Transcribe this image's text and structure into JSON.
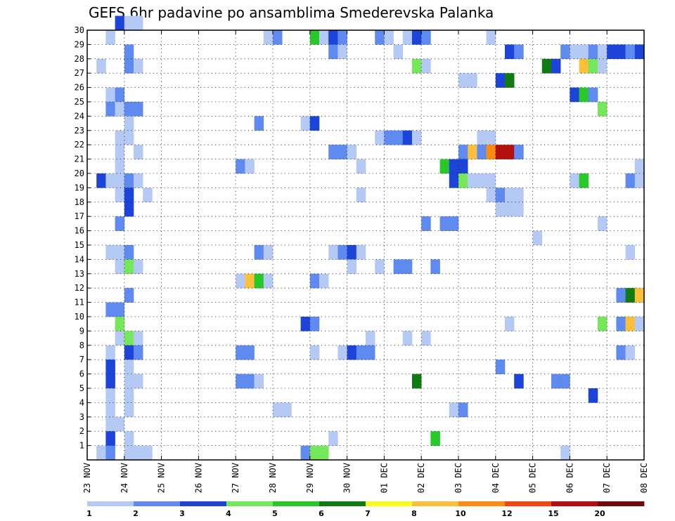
{
  "chart_data": {
    "type": "heatmap",
    "title": "GEFS 6hr padavine po ansamblima Smederevska Palanka",
    "x_tick_labels": [
      "23 NOV",
      "24 NOV",
      "25 NOV",
      "26 NOV",
      "27 NOV",
      "28 NOV",
      "29 NOV",
      "30 NOV",
      "01 DEC",
      "02 DEC",
      "03 DEC",
      "04 DEC",
      "05 DEC",
      "06 DEC",
      "07 DEC",
      "08 DEC"
    ],
    "y_tick_labels": [
      "1",
      "2",
      "3",
      "4",
      "5",
      "6",
      "7",
      "8",
      "9",
      "10",
      "11",
      "12",
      "13",
      "14",
      "15",
      "16",
      "17",
      "18",
      "19",
      "20",
      "21",
      "22",
      "23",
      "24",
      "25",
      "26",
      "27",
      "28",
      "29",
      "30"
    ],
    "xlim": [
      0,
      60
    ],
    "ylim": [
      0,
      30
    ],
    "grid": true,
    "colorbar": {
      "labels": [
        "1",
        "2",
        "3",
        "4",
        "5",
        "6",
        "7",
        "8",
        "10",
        "12",
        "15",
        "20"
      ],
      "colors": [
        "#b5c9f5",
        "#5f8af0",
        "#1d44d8",
        "#76e65a",
        "#28c828",
        "#127a12",
        "#fafa1e",
        "#fac03c",
        "#fa8c14",
        "#f04614",
        "#b40f0f",
        "#700a0a"
      ]
    },
    "cells": [
      {
        "x": 3,
        "y": 30,
        "c": 2
      },
      {
        "x": 4,
        "y": 30,
        "c": 0
      },
      {
        "x": 5,
        "y": 30,
        "c": 0
      },
      {
        "x": 2,
        "y": 29,
        "c": 0
      },
      {
        "x": 19,
        "y": 29,
        "c": 0
      },
      {
        "x": 20,
        "y": 29,
        "c": 1
      },
      {
        "x": 24,
        "y": 29,
        "c": 4
      },
      {
        "x": 25,
        "y": 29,
        "c": 0
      },
      {
        "x": 26,
        "y": 29,
        "c": 2
      },
      {
        "x": 27,
        "y": 29,
        "c": 1
      },
      {
        "x": 31,
        "y": 29,
        "c": 1
      },
      {
        "x": 32,
        "y": 29,
        "c": 0
      },
      {
        "x": 34,
        "y": 29,
        "c": 0
      },
      {
        "x": 35,
        "y": 29,
        "c": 2
      },
      {
        "x": 36,
        "y": 29,
        "c": 1
      },
      {
        "x": 43,
        "y": 29,
        "c": 0
      },
      {
        "x": 4,
        "y": 28,
        "c": 1
      },
      {
        "x": 26,
        "y": 28,
        "c": 1
      },
      {
        "x": 27,
        "y": 28,
        "c": 0
      },
      {
        "x": 33,
        "y": 28,
        "c": 0
      },
      {
        "x": 45,
        "y": 28,
        "c": 2
      },
      {
        "x": 46,
        "y": 28,
        "c": 1
      },
      {
        "x": 51,
        "y": 28,
        "c": 1
      },
      {
        "x": 52,
        "y": 28,
        "c": 0
      },
      {
        "x": 53,
        "y": 28,
        "c": 0
      },
      {
        "x": 54,
        "y": 28,
        "c": 1
      },
      {
        "x": 55,
        "y": 28,
        "c": 0
      },
      {
        "x": 56,
        "y": 28,
        "c": 2
      },
      {
        "x": 57,
        "y": 28,
        "c": 2
      },
      {
        "x": 58,
        "y": 28,
        "c": 1
      },
      {
        "x": 59,
        "y": 28,
        "c": 2
      },
      {
        "x": 1,
        "y": 27,
        "c": 0
      },
      {
        "x": 4,
        "y": 27,
        "c": 1
      },
      {
        "x": 5,
        "y": 27,
        "c": 0
      },
      {
        "x": 35,
        "y": 27,
        "c": 3
      },
      {
        "x": 36,
        "y": 27,
        "c": 0
      },
      {
        "x": 49,
        "y": 27,
        "c": 5
      },
      {
        "x": 50,
        "y": 27,
        "c": 2
      },
      {
        "x": 53,
        "y": 27,
        "c": 7
      },
      {
        "x": 54,
        "y": 27,
        "c": 3
      },
      {
        "x": 55,
        "y": 27,
        "c": 0
      },
      {
        "x": 40,
        "y": 26,
        "c": 0
      },
      {
        "x": 41,
        "y": 26,
        "c": 0
      },
      {
        "x": 44,
        "y": 26,
        "c": 2
      },
      {
        "x": 45,
        "y": 26,
        "c": 5
      },
      {
        "x": 2,
        "y": 25,
        "c": 0
      },
      {
        "x": 3,
        "y": 25,
        "c": 1
      },
      {
        "x": 52,
        "y": 25,
        "c": 2
      },
      {
        "x": 53,
        "y": 25,
        "c": 4
      },
      {
        "x": 54,
        "y": 25,
        "c": 1
      },
      {
        "x": 2,
        "y": 24,
        "c": 1
      },
      {
        "x": 3,
        "y": 24,
        "c": 0
      },
      {
        "x": 4,
        "y": 24,
        "c": 1
      },
      {
        "x": 5,
        "y": 24,
        "c": 1
      },
      {
        "x": 55,
        "y": 24,
        "c": 3
      },
      {
        "x": 4,
        "y": 23,
        "c": 0
      },
      {
        "x": 18,
        "y": 23,
        "c": 1
      },
      {
        "x": 23,
        "y": 23,
        "c": 0
      },
      {
        "x": 24,
        "y": 23,
        "c": 2
      },
      {
        "x": 3,
        "y": 22,
        "c": 0
      },
      {
        "x": 4,
        "y": 22,
        "c": 0
      },
      {
        "x": 31,
        "y": 22,
        "c": 0
      },
      {
        "x": 32,
        "y": 22,
        "c": 1
      },
      {
        "x": 33,
        "y": 22,
        "c": 1
      },
      {
        "x": 34,
        "y": 22,
        "c": 2
      },
      {
        "x": 35,
        "y": 22,
        "c": 0
      },
      {
        "x": 42,
        "y": 22,
        "c": 0
      },
      {
        "x": 43,
        "y": 22,
        "c": 0
      },
      {
        "x": 3,
        "y": 21,
        "c": 0
      },
      {
        "x": 5,
        "y": 21,
        "c": 0
      },
      {
        "x": 26,
        "y": 21,
        "c": 1
      },
      {
        "x": 27,
        "y": 21,
        "c": 1
      },
      {
        "x": 28,
        "y": 21,
        "c": 0
      },
      {
        "x": 40,
        "y": 21,
        "c": 1
      },
      {
        "x": 41,
        "y": 21,
        "c": 7
      },
      {
        "x": 42,
        "y": 21,
        "c": 1
      },
      {
        "x": 43,
        "y": 21,
        "c": 8
      },
      {
        "x": 44,
        "y": 21,
        "c": 10
      },
      {
        "x": 45,
        "y": 21,
        "c": 10
      },
      {
        "x": 46,
        "y": 21,
        "c": 1
      },
      {
        "x": 3,
        "y": 20,
        "c": 0
      },
      {
        "x": 16,
        "y": 20,
        "c": 1
      },
      {
        "x": 17,
        "y": 20,
        "c": 0
      },
      {
        "x": 29,
        "y": 20,
        "c": 0
      },
      {
        "x": 38,
        "y": 20,
        "c": 4
      },
      {
        "x": 39,
        "y": 20,
        "c": 2
      },
      {
        "x": 40,
        "y": 20,
        "c": 2
      },
      {
        "x": 59,
        "y": 20,
        "c": 0
      },
      {
        "x": 1,
        "y": 19,
        "c": 2
      },
      {
        "x": 2,
        "y": 19,
        "c": 0
      },
      {
        "x": 3,
        "y": 19,
        "c": 0
      },
      {
        "x": 4,
        "y": 19,
        "c": 1
      },
      {
        "x": 5,
        "y": 19,
        "c": 0
      },
      {
        "x": 39,
        "y": 19,
        "c": 2
      },
      {
        "x": 40,
        "y": 19,
        "c": 3
      },
      {
        "x": 41,
        "y": 19,
        "c": 0
      },
      {
        "x": 42,
        "y": 19,
        "c": 0
      },
      {
        "x": 43,
        "y": 19,
        "c": 0
      },
      {
        "x": 52,
        "y": 19,
        "c": 0
      },
      {
        "x": 53,
        "y": 19,
        "c": 4
      },
      {
        "x": 58,
        "y": 19,
        "c": 1
      },
      {
        "x": 59,
        "y": 19,
        "c": 0
      },
      {
        "x": 3,
        "y": 18,
        "c": 0
      },
      {
        "x": 4,
        "y": 18,
        "c": 2
      },
      {
        "x": 29,
        "y": 18,
        "c": 0
      },
      {
        "x": 43,
        "y": 18,
        "c": 0
      },
      {
        "x": 44,
        "y": 18,
        "c": 1
      },
      {
        "x": 45,
        "y": 18,
        "c": 0
      },
      {
        "x": 46,
        "y": 18,
        "c": 0
      },
      {
        "x": 6,
        "y": 18,
        "c": 0
      },
      {
        "x": 4,
        "y": 17,
        "c": 2
      },
      {
        "x": 44,
        "y": 17,
        "c": 0
      },
      {
        "x": 45,
        "y": 17,
        "c": 0
      },
      {
        "x": 46,
        "y": 17,
        "c": 0
      },
      {
        "x": 3,
        "y": 16,
        "c": 1
      },
      {
        "x": 36,
        "y": 16,
        "c": 1
      },
      {
        "x": 38,
        "y": 16,
        "c": 1
      },
      {
        "x": 39,
        "y": 16,
        "c": 1
      },
      {
        "x": 55,
        "y": 16,
        "c": 0
      },
      {
        "x": 48,
        "y": 15,
        "c": 0
      },
      {
        "x": 2,
        "y": 14,
        "c": 0
      },
      {
        "x": 3,
        "y": 14,
        "c": 0
      },
      {
        "x": 4,
        "y": 14,
        "c": 1
      },
      {
        "x": 18,
        "y": 14,
        "c": 1
      },
      {
        "x": 19,
        "y": 14,
        "c": 0
      },
      {
        "x": 26,
        "y": 14,
        "c": 0
      },
      {
        "x": 27,
        "y": 14,
        "c": 1
      },
      {
        "x": 28,
        "y": 14,
        "c": 2
      },
      {
        "x": 29,
        "y": 14,
        "c": 0
      },
      {
        "x": 58,
        "y": 14,
        "c": 0
      },
      {
        "x": 3,
        "y": 13,
        "c": 0
      },
      {
        "x": 4,
        "y": 13,
        "c": 3
      },
      {
        "x": 5,
        "y": 13,
        "c": 0
      },
      {
        "x": 28,
        "y": 13,
        "c": 0
      },
      {
        "x": 31,
        "y": 13,
        "c": 0
      },
      {
        "x": 33,
        "y": 13,
        "c": 1
      },
      {
        "x": 34,
        "y": 13,
        "c": 1
      },
      {
        "x": 37,
        "y": 13,
        "c": 1
      },
      {
        "x": 16,
        "y": 12,
        "c": 0
      },
      {
        "x": 17,
        "y": 12,
        "c": 7
      },
      {
        "x": 18,
        "y": 12,
        "c": 4
      },
      {
        "x": 19,
        "y": 12,
        "c": 0
      },
      {
        "x": 24,
        "y": 12,
        "c": 1
      },
      {
        "x": 25,
        "y": 12,
        "c": 0
      },
      {
        "x": 4,
        "y": 11,
        "c": 1
      },
      {
        "x": 57,
        "y": 11,
        "c": 1
      },
      {
        "x": 58,
        "y": 11,
        "c": 5
      },
      {
        "x": 59,
        "y": 11,
        "c": 7
      },
      {
        "x": 2,
        "y": 10,
        "c": 1
      },
      {
        "x": 3,
        "y": 10,
        "c": 1
      },
      {
        "x": 3,
        "y": 9,
        "c": 3
      },
      {
        "x": 23,
        "y": 9,
        "c": 2
      },
      {
        "x": 24,
        "y": 9,
        "c": 1
      },
      {
        "x": 45,
        "y": 9,
        "c": 0
      },
      {
        "x": 55,
        "y": 9,
        "c": 3
      },
      {
        "x": 57,
        "y": 9,
        "c": 1
      },
      {
        "x": 58,
        "y": 9,
        "c": 7
      },
      {
        "x": 59,
        "y": 9,
        "c": 0
      },
      {
        "x": 3,
        "y": 8,
        "c": 0
      },
      {
        "x": 4,
        "y": 8,
        "c": 3
      },
      {
        "x": 5,
        "y": 8,
        "c": 0
      },
      {
        "x": 30,
        "y": 8,
        "c": 0
      },
      {
        "x": 34,
        "y": 8,
        "c": 0
      },
      {
        "x": 36,
        "y": 8,
        "c": 0
      },
      {
        "x": 2,
        "y": 7,
        "c": 0
      },
      {
        "x": 4,
        "y": 7,
        "c": 2
      },
      {
        "x": 5,
        "y": 7,
        "c": 1
      },
      {
        "x": 16,
        "y": 7,
        "c": 1
      },
      {
        "x": 17,
        "y": 7,
        "c": 1
      },
      {
        "x": 24,
        "y": 7,
        "c": 0
      },
      {
        "x": 27,
        "y": 7,
        "c": 0
      },
      {
        "x": 28,
        "y": 7,
        "c": 2
      },
      {
        "x": 29,
        "y": 7,
        "c": 1
      },
      {
        "x": 30,
        "y": 7,
        "c": 1
      },
      {
        "x": 57,
        "y": 7,
        "c": 1
      },
      {
        "x": 58,
        "y": 7,
        "c": 0
      },
      {
        "x": 2,
        "y": 6,
        "c": 2
      },
      {
        "x": 4,
        "y": 6,
        "c": 0
      },
      {
        "x": 44,
        "y": 6,
        "c": 1
      },
      {
        "x": 2,
        "y": 5,
        "c": 2
      },
      {
        "x": 4,
        "y": 5,
        "c": 0
      },
      {
        "x": 5,
        "y": 5,
        "c": 0
      },
      {
        "x": 16,
        "y": 5,
        "c": 1
      },
      {
        "x": 17,
        "y": 5,
        "c": 1
      },
      {
        "x": 18,
        "y": 5,
        "c": 0
      },
      {
        "x": 35,
        "y": 5,
        "c": 5
      },
      {
        "x": 46,
        "y": 5,
        "c": 2
      },
      {
        "x": 50,
        "y": 5,
        "c": 1
      },
      {
        "x": 51,
        "y": 5,
        "c": 1
      },
      {
        "x": 2,
        "y": 4,
        "c": 0
      },
      {
        "x": 4,
        "y": 4,
        "c": 0
      },
      {
        "x": 54,
        "y": 4,
        "c": 2
      },
      {
        "x": 2,
        "y": 3,
        "c": 0
      },
      {
        "x": 4,
        "y": 3,
        "c": 0
      },
      {
        "x": 20,
        "y": 3,
        "c": 0
      },
      {
        "x": 21,
        "y": 3,
        "c": 0
      },
      {
        "x": 39,
        "y": 3,
        "c": 0
      },
      {
        "x": 40,
        "y": 3,
        "c": 1
      },
      {
        "x": 2,
        "y": 2,
        "c": 0
      },
      {
        "x": 3,
        "y": 2,
        "c": 0
      },
      {
        "x": 2,
        "y": 1,
        "c": 2
      },
      {
        "x": 4,
        "y": 1,
        "c": 0
      },
      {
        "x": 26,
        "y": 1,
        "c": 0
      },
      {
        "x": 37,
        "y": 1,
        "c": 4
      },
      {
        "x": 1,
        "y": 0,
        "c": 0
      },
      {
        "x": 2,
        "y": 0,
        "c": 1
      },
      {
        "x": 4,
        "y": 0,
        "c": 0
      },
      {
        "x": 5,
        "y": 0,
        "c": 0
      },
      {
        "x": 6,
        "y": 0,
        "c": 0
      },
      {
        "x": 23,
        "y": 0,
        "c": 1
      },
      {
        "x": 24,
        "y": 0,
        "c": 3
      },
      {
        "x": 25,
        "y": 0,
        "c": 3
      },
      {
        "x": 51,
        "y": 0,
        "c": 0
      }
    ]
  }
}
